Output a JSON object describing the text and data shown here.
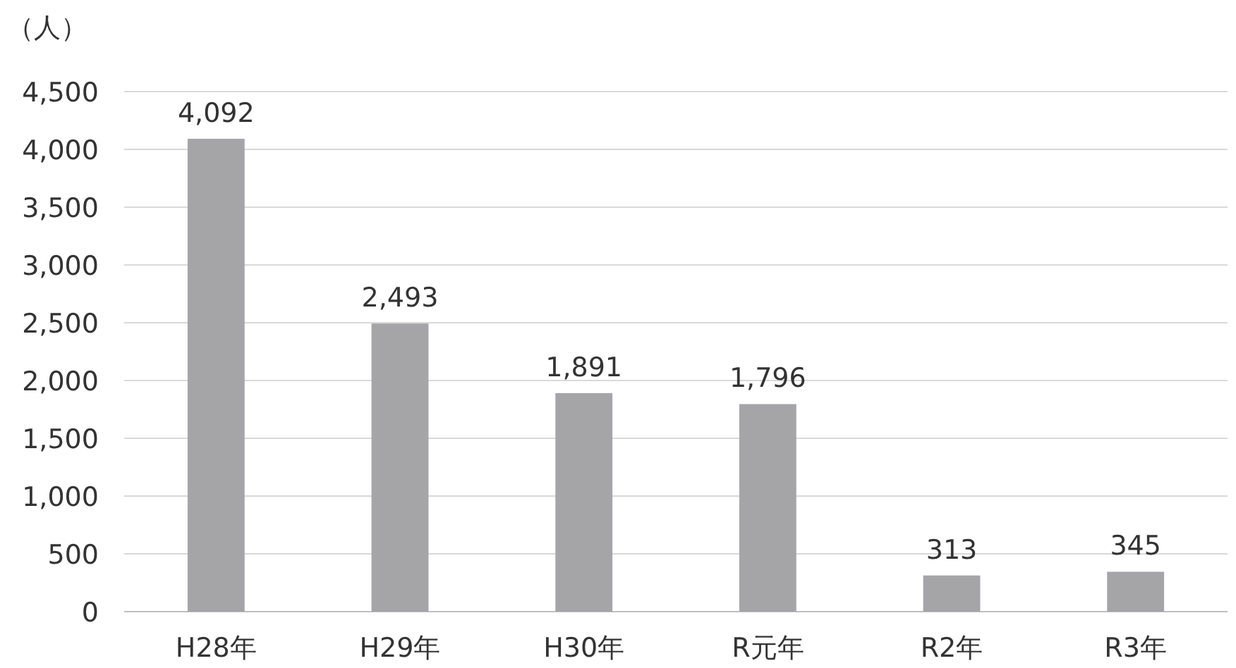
{
  "chart_data": {
    "type": "bar",
    "ylabel": "（人）",
    "categories": [
      "H28年",
      "H29年",
      "H30年",
      "R元年",
      "R2年",
      "R3年"
    ],
    "values": [
      4092,
      2493,
      1891,
      1796,
      313,
      345
    ],
    "value_labels": [
      "4,092",
      "2,493",
      "1,891",
      "1,796",
      "313",
      "345"
    ],
    "color": "#a5a5a7",
    "ylim": [
      0,
      4500
    ],
    "yticks": [
      {
        "value": 0,
        "label": "0"
      },
      {
        "value": 500,
        "label": "500"
      },
      {
        "value": 1000,
        "label": "1,000"
      },
      {
        "value": 1500,
        "label": "1,500"
      },
      {
        "value": 2000,
        "label": "2,000"
      },
      {
        "value": 2500,
        "label": "2,500"
      },
      {
        "value": 3000,
        "label": "3,000"
      },
      {
        "value": 3500,
        "label": "3,500"
      },
      {
        "value": 4000,
        "label": "4,000"
      },
      {
        "value": 4500,
        "label": "4,500"
      }
    ],
    "grid": "y"
  }
}
